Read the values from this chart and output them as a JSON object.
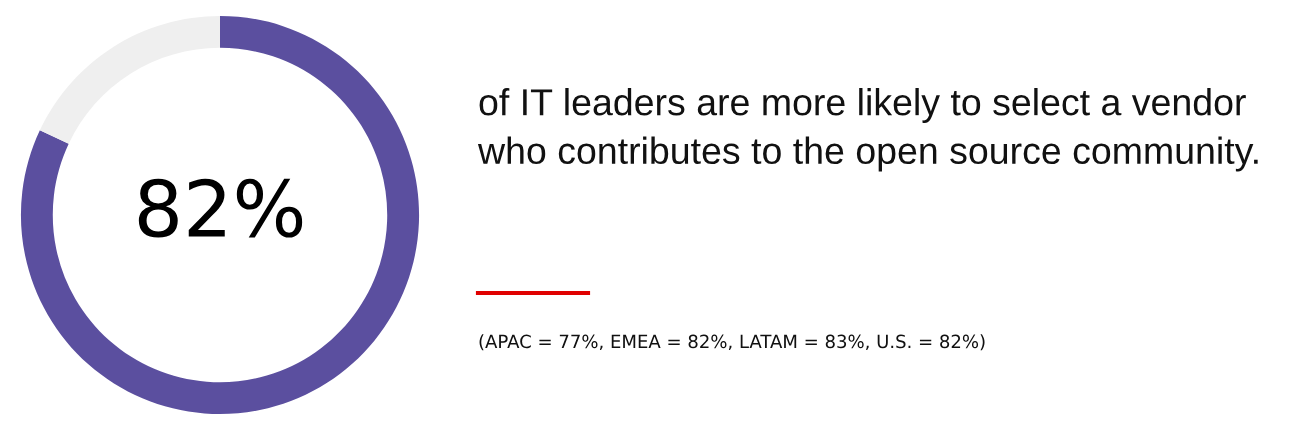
{
  "chart_data": {
    "type": "donut",
    "title": "of IT leaders are more likely to select a vendor who contributes to the open source community.",
    "categories": [
      null,
      null
    ],
    "values": [
      82,
      18
    ],
    "colors": [
      "#5b4f9f",
      "#efefef"
    ],
    "value_labels": [
      "82%",
      null
    ],
    "annotations": [
      "(APAC = 77%, EMEA = 82%, LATAM = 83%, U.S. = 82%)"
    ]
  }
}
